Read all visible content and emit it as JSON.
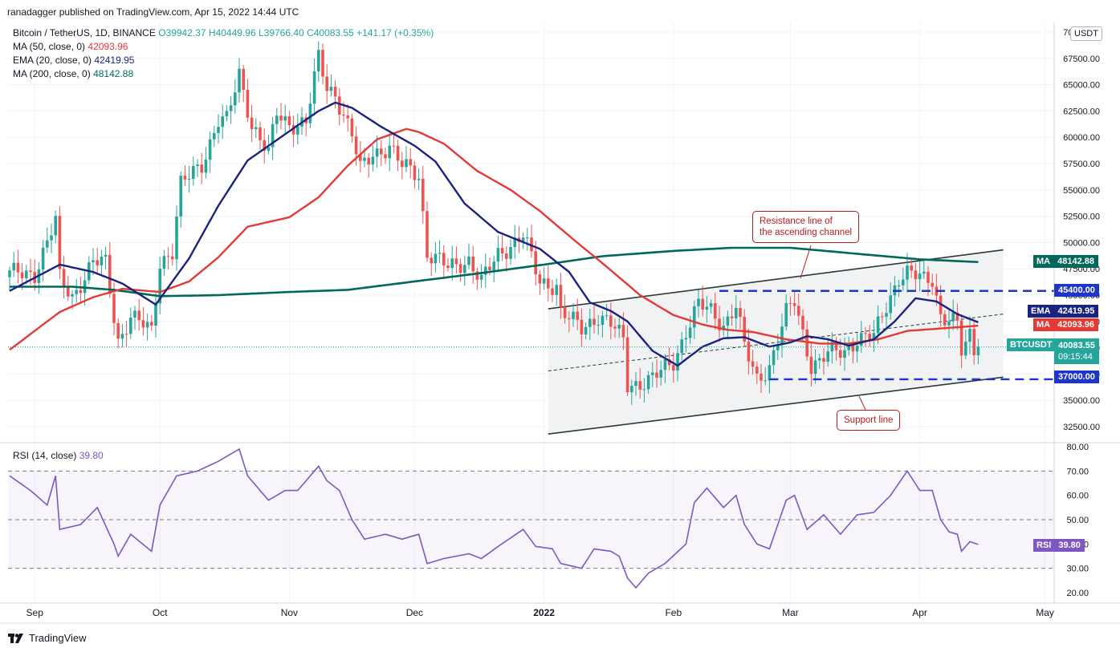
{
  "publisher": "ranadagger published on TradingView.com, Apr 15, 2022 14:44 UTC",
  "legend": {
    "symbol": "Bitcoin / TetherUS, 1D, BINANCE",
    "ohlc": {
      "o": "O39942.37",
      "h": "H40449.96",
      "l": "L39766.40",
      "c": "C40083.55",
      "chg": "+141.17 (+0.35%)"
    },
    "ma50": {
      "label": "MA (50, close, 0)",
      "value": "42093.96"
    },
    "ema20": {
      "label": "EMA (20, close, 0)",
      "value": "42419.95"
    },
    "ma200": {
      "label": "MA (200, close, 0)",
      "value": "48142.88"
    },
    "rsi": {
      "label": "RSI (14, close)",
      "value": "39.80"
    }
  },
  "currency_button": "USDT",
  "footer": "TradingView",
  "tags": {
    "ma200": {
      "key": "MA",
      "value": "48142.88"
    },
    "level_45400": "45400.00",
    "ema20": {
      "key": "EMA",
      "value": "42419.95"
    },
    "ma50": {
      "key": "MA",
      "value": "42093.96"
    },
    "last": {
      "key": "BTCUSDT",
      "value": "40083.55",
      "countdown": "09:15:44"
    },
    "level_37000": "37000.00",
    "rsi": {
      "key": "RSI",
      "value": "39.80"
    }
  },
  "annotations": {
    "resistance": [
      "Resistance line of",
      "the ascending channel"
    ],
    "support": "Support line"
  },
  "colors": {
    "up": "#26a69a",
    "down": "#ef5350",
    "ma50": "#e53935",
    "ema20": "#1a237e",
    "ma200": "#00695c",
    "rsi": "#7e57c2",
    "level": "#1e36c8",
    "channel": "#2a3a3a"
  },
  "chart_data": [
    {
      "type": "candlestick",
      "title": "Bitcoin / TetherUS, 1D, BINANCE",
      "x_ticks": [
        "Sep",
        "Oct",
        "Nov",
        "Dec",
        "2022",
        "Feb",
        "Mar",
        "Apr",
        "May"
      ],
      "y_ticks": [
        "32500.00",
        "35000.00",
        "37500.00",
        "40000.00",
        "42500.00",
        "45000.00",
        "47500.00",
        "50000.00",
        "52500.00",
        "55000.00",
        "57500.00",
        "60000.00",
        "62500.00",
        "65000.00",
        "67500.00",
        "70000.00"
      ],
      "ylim": [
        31500,
        70500
      ],
      "dates": [
        "2021-08-26",
        "2022-04-15"
      ],
      "close_anchors": [
        [
          "2021-08-26",
          47000
        ],
        [
          "2021-09-01",
          47100
        ],
        [
          "2021-09-06",
          52000
        ],
        [
          "2021-09-07",
          46500
        ],
        [
          "2021-09-10",
          44900
        ],
        [
          "2021-09-15",
          48100
        ],
        [
          "2021-09-18",
          48000
        ],
        [
          "2021-09-20",
          43000
        ],
        [
          "2021-09-21",
          40700
        ],
        [
          "2021-09-24",
          43000
        ],
        [
          "2021-09-29",
          41500
        ],
        [
          "2021-10-01",
          48200
        ],
        [
          "2021-10-04",
          49200
        ],
        [
          "2021-10-06",
          55400
        ],
        [
          "2021-10-11",
          57500
        ],
        [
          "2021-10-15",
          61600
        ],
        [
          "2021-10-17",
          61500
        ],
        [
          "2021-10-20",
          66000
        ],
        [
          "2021-10-23",
          61300
        ],
        [
          "2021-10-27",
          58400
        ],
        [
          "2021-10-29",
          62200
        ],
        [
          "2021-11-01",
          61300
        ],
        [
          "2021-11-05",
          61400
        ],
        [
          "2021-11-08",
          67500
        ],
        [
          "2021-11-10",
          64800
        ],
        [
          "2021-11-12",
          64200
        ],
        [
          "2021-11-16",
          60100
        ],
        [
          "2021-11-18",
          56900
        ],
        [
          "2021-11-21",
          58600
        ],
        [
          "2021-11-25",
          59000
        ],
        [
          "2021-11-28",
          57200
        ],
        [
          "2021-11-30",
          57000
        ],
        [
          "2021-12-02",
          56500
        ],
        [
          "2021-12-04",
          49000
        ],
        [
          "2021-12-09",
          47600
        ],
        [
          "2021-12-14",
          48400
        ],
        [
          "2021-12-17",
          46200
        ],
        [
          "2021-12-21",
          48900
        ],
        [
          "2021-12-27",
          50700
        ],
        [
          "2021-12-31",
          46200
        ],
        [
          "2022-01-04",
          46000
        ],
        [
          "2022-01-05",
          43400
        ],
        [
          "2022-01-10",
          41800
        ],
        [
          "2022-01-14",
          43100
        ],
        [
          "2022-01-17",
          42200
        ],
        [
          "2022-01-20",
          40700
        ],
        [
          "2022-01-21",
          36500
        ],
        [
          "2022-01-24",
          36700
        ],
        [
          "2022-01-27",
          37000
        ],
        [
          "2022-02-01",
          38700
        ],
        [
          "2022-02-04",
          41600
        ],
        [
          "2022-02-07",
          44000
        ],
        [
          "2022-02-10",
          43500
        ],
        [
          "2022-02-13",
          42200
        ],
        [
          "2022-02-16",
          44000
        ],
        [
          "2022-02-18",
          40000
        ],
        [
          "2022-02-21",
          37000
        ],
        [
          "2022-02-24",
          38300
        ],
        [
          "2022-02-28",
          43200
        ],
        [
          "2022-03-02",
          44400
        ],
        [
          "2022-03-06",
          38400
        ],
        [
          "2022-03-08",
          38700
        ],
        [
          "2022-03-10",
          39400
        ],
        [
          "2022-03-14",
          39700
        ],
        [
          "2022-03-17",
          40900
        ],
        [
          "2022-03-21",
          41000
        ],
        [
          "2022-03-24",
          44000
        ],
        [
          "2022-03-27",
          46800
        ],
        [
          "2022-03-29",
          47100
        ],
        [
          "2022-04-02",
          46400
        ],
        [
          "2022-04-04",
          46600
        ],
        [
          "2022-04-06",
          43200
        ],
        [
          "2022-04-10",
          42200
        ],
        [
          "2022-04-11",
          39500
        ],
        [
          "2022-04-12",
          40100
        ],
        [
          "2022-04-13",
          41200
        ],
        [
          "2022-04-14",
          39900
        ],
        [
          "2022-04-15",
          40083.55
        ]
      ],
      "ema20_anchors": [
        [
          "2021-08-26",
          45400
        ],
        [
          "2021-09-07",
          47900
        ],
        [
          "2021-09-15",
          47200
        ],
        [
          "2021-09-22",
          46100
        ],
        [
          "2021-09-30",
          44100
        ],
        [
          "2021-10-08",
          48500
        ],
        [
          "2021-10-15",
          53500
        ],
        [
          "2021-10-22",
          57800
        ],
        [
          "2021-10-31",
          60300
        ],
        [
          "2021-11-08",
          62500
        ],
        [
          "2021-11-12",
          63300
        ],
        [
          "2021-11-16",
          62800
        ],
        [
          "2021-11-23",
          61000
        ],
        [
          "2021-12-01",
          59200
        ],
        [
          "2021-12-06",
          57700
        ],
        [
          "2021-12-13",
          53700
        ],
        [
          "2021-12-21",
          51000
        ],
        [
          "2021-12-31",
          49400
        ],
        [
          "2022-01-07",
          47200
        ],
        [
          "2022-01-12",
          44300
        ],
        [
          "2022-01-17",
          43500
        ],
        [
          "2022-01-21",
          42500
        ],
        [
          "2022-01-27",
          39700
        ],
        [
          "2022-02-02",
          38300
        ],
        [
          "2022-02-08",
          40100
        ],
        [
          "2022-02-13",
          40900
        ],
        [
          "2022-02-18",
          41000
        ],
        [
          "2022-02-24",
          40100
        ],
        [
          "2022-03-01",
          40500
        ],
        [
          "2022-03-05",
          41100
        ],
        [
          "2022-03-10",
          40800
        ],
        [
          "2022-03-15",
          40200
        ],
        [
          "2022-03-21",
          40800
        ],
        [
          "2022-03-26",
          42500
        ],
        [
          "2022-03-31",
          44700
        ],
        [
          "2022-04-05",
          44400
        ],
        [
          "2022-04-10",
          43200
        ],
        [
          "2022-04-15",
          42419.95
        ]
      ],
      "ma50_anchors": [
        [
          "2021-08-26",
          39800
        ],
        [
          "2021-09-07",
          43400
        ],
        [
          "2021-09-15",
          44800
        ],
        [
          "2021-09-22",
          45600
        ],
        [
          "2021-10-01",
          45300
        ],
        [
          "2021-10-08",
          46300
        ],
        [
          "2021-10-15",
          48600
        ],
        [
          "2021-10-22",
          51500
        ],
        [
          "2021-11-01",
          52400
        ],
        [
          "2021-11-08",
          54300
        ],
        [
          "2021-11-15",
          57300
        ],
        [
          "2021-11-22",
          59800
        ],
        [
          "2021-11-29",
          60800
        ],
        [
          "2021-12-02",
          60500
        ],
        [
          "2021-12-08",
          59400
        ],
        [
          "2021-12-16",
          56800
        ],
        [
          "2021-12-24",
          55000
        ],
        [
          "2021-12-31",
          53000
        ],
        [
          "2022-01-08",
          50300
        ],
        [
          "2022-01-16",
          47700
        ],
        [
          "2022-01-24",
          45000
        ],
        [
          "2022-02-01",
          43100
        ],
        [
          "2022-02-08",
          42200
        ],
        [
          "2022-02-14",
          41700
        ],
        [
          "2022-02-20",
          41500
        ],
        [
          "2022-02-28",
          40800
        ],
        [
          "2022-03-08",
          40400
        ],
        [
          "2022-03-15",
          40400
        ],
        [
          "2022-03-22",
          40800
        ],
        [
          "2022-03-29",
          41600
        ],
        [
          "2022-04-05",
          41800
        ],
        [
          "2022-04-15",
          42093.96
        ]
      ],
      "ma200_anchors": [
        [
          "2021-08-26",
          45800
        ],
        [
          "2021-09-10",
          45800
        ],
        [
          "2021-09-20",
          45500
        ],
        [
          "2021-10-01",
          44900
        ],
        [
          "2021-10-15",
          45000
        ],
        [
          "2021-11-01",
          45300
        ],
        [
          "2021-11-15",
          45500
        ],
        [
          "2021-12-01",
          46300
        ],
        [
          "2021-12-15",
          47000
        ],
        [
          "2022-01-01",
          47900
        ],
        [
          "2022-01-15",
          48700
        ],
        [
          "2022-02-01",
          49200
        ],
        [
          "2022-02-15",
          49500
        ],
        [
          "2022-03-01",
          49500
        ],
        [
          "2022-03-15",
          49000
        ],
        [
          "2022-04-01",
          48400
        ],
        [
          "2022-04-15",
          48142.88
        ]
      ],
      "levels": [
        45400,
        37000
      ],
      "channel": {
        "upper": [
          [
            "2022-01-02",
            43700
          ],
          [
            "2022-04-21",
            49300
          ]
        ],
        "lower": [
          [
            "2022-01-02",
            31800
          ],
          [
            "2022-04-21",
            37200
          ]
        ],
        "middle": [
          [
            "2022-01-02",
            37800
          ],
          [
            "2022-04-21",
            43200
          ]
        ]
      }
    },
    {
      "type": "line",
      "title": "RSI (14, close)",
      "y_ticks": [
        "20.00",
        "30.00",
        "40.00",
        "50.00",
        "60.00",
        "70.00",
        "80.00"
      ],
      "ylim": [
        15,
        82
      ],
      "bands": [
        70,
        50,
        30
      ],
      "rsi_anchors": [
        [
          "2021-08-26",
          68
        ],
        [
          "2021-08-31",
          62
        ],
        [
          "2021-09-04",
          56
        ],
        [
          "2021-09-06",
          68
        ],
        [
          "2021-09-07",
          46
        ],
        [
          "2021-09-12",
          48
        ],
        [
          "2021-09-16",
          55
        ],
        [
          "2021-09-20",
          40
        ],
        [
          "2021-09-21",
          35
        ],
        [
          "2021-09-24",
          44
        ],
        [
          "2021-09-29",
          37
        ],
        [
          "2021-10-01",
          56
        ],
        [
          "2021-10-05",
          68
        ],
        [
          "2021-10-10",
          70
        ],
        [
          "2021-10-15",
          74
        ],
        [
          "2021-10-20",
          79
        ],
        [
          "2021-10-22",
          68
        ],
        [
          "2021-10-27",
          58
        ],
        [
          "2021-10-31",
          62
        ],
        [
          "2021-11-03",
          62
        ],
        [
          "2021-11-08",
          72
        ],
        [
          "2021-11-10",
          66
        ],
        [
          "2021-11-13",
          62
        ],
        [
          "2021-11-16",
          50
        ],
        [
          "2021-11-19",
          42
        ],
        [
          "2021-11-24",
          44
        ],
        [
          "2021-11-28",
          42
        ],
        [
          "2021-12-02",
          44
        ],
        [
          "2021-12-04",
          32
        ],
        [
          "2021-12-08",
          34
        ],
        [
          "2021-12-14",
          36
        ],
        [
          "2021-12-17",
          34
        ],
        [
          "2021-12-21",
          39
        ],
        [
          "2021-12-27",
          46
        ],
        [
          "2021-12-30",
          39
        ],
        [
          "2022-01-03",
          38
        ],
        [
          "2022-01-05",
          32
        ],
        [
          "2022-01-10",
          30
        ],
        [
          "2022-01-13",
          38
        ],
        [
          "2022-01-17",
          37
        ],
        [
          "2022-01-19",
          35
        ],
        [
          "2022-01-21",
          26
        ],
        [
          "2022-01-23",
          22
        ],
        [
          "2022-01-26",
          28
        ],
        [
          "2022-01-30",
          32
        ],
        [
          "2022-02-04",
          40
        ],
        [
          "2022-02-06",
          57
        ],
        [
          "2022-02-09",
          63
        ],
        [
          "2022-02-13",
          55
        ],
        [
          "2022-02-16",
          60
        ],
        [
          "2022-02-18",
          48
        ],
        [
          "2022-02-21",
          40
        ],
        [
          "2022-02-24",
          38
        ],
        [
          "2022-02-28",
          58
        ],
        [
          "2022-03-02",
          60
        ],
        [
          "2022-03-05",
          46
        ],
        [
          "2022-03-09",
          52
        ],
        [
          "2022-03-13",
          44
        ],
        [
          "2022-03-17",
          52
        ],
        [
          "2022-03-21",
          53
        ],
        [
          "2022-03-25",
          60
        ],
        [
          "2022-03-29",
          70
        ],
        [
          "2022-04-01",
          62
        ],
        [
          "2022-04-04",
          62
        ],
        [
          "2022-04-06",
          50
        ],
        [
          "2022-04-08",
          45
        ],
        [
          "2022-04-10",
          44
        ],
        [
          "2022-04-11",
          37
        ],
        [
          "2022-04-13",
          41
        ],
        [
          "2022-04-15",
          39.8
        ]
      ]
    }
  ]
}
